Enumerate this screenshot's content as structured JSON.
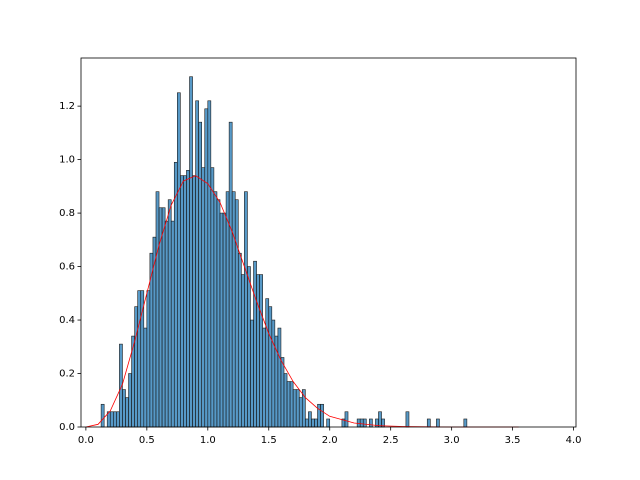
{
  "chart_data": {
    "type": "histogram",
    "bins": [
      0.1,
      0.125,
      0.15,
      0.175,
      0.2,
      0.225,
      0.25,
      0.275,
      0.3,
      0.325,
      0.35,
      0.375,
      0.4,
      0.425,
      0.45,
      0.475,
      0.5,
      0.525,
      0.55,
      0.575,
      0.6,
      0.625,
      0.65,
      0.675,
      0.7,
      0.725,
      0.75,
      0.775,
      0.8,
      0.825,
      0.85,
      0.875,
      0.9,
      0.925,
      0.95,
      0.975,
      1.0,
      1.025,
      1.05,
      1.075,
      1.1,
      1.125,
      1.15,
      1.175,
      1.2,
      1.225,
      1.25,
      1.275,
      1.3,
      1.325,
      1.35,
      1.375,
      1.4,
      1.425,
      1.45,
      1.475,
      1.5,
      1.525,
      1.55,
      1.575,
      1.6,
      1.625,
      1.65,
      1.675,
      1.7,
      1.725,
      1.75,
      1.775,
      1.8,
      1.825,
      1.85,
      1.875,
      1.9,
      1.925,
      1.95,
      1.975,
      2.0,
      2.025,
      2.05,
      2.075,
      2.1,
      2.125,
      2.15,
      2.175,
      2.2,
      2.225,
      2.25,
      2.275,
      2.3,
      2.325,
      2.35,
      2.375,
      2.4,
      2.425,
      2.45,
      2.475,
      2.5,
      2.525,
      2.55,
      2.575,
      2.6,
      2.625,
      2.65,
      2.675,
      2.7,
      2.725,
      2.75,
      2.775,
      2.8,
      2.825,
      2.85,
      2.875,
      2.9,
      2.925,
      2.95,
      2.975,
      3.0,
      3.025,
      3.05,
      3.075,
      3.1,
      3.125
    ],
    "values": [
      0,
      0.085,
      0,
      0.057,
      0.057,
      0.057,
      0.057,
      0.31,
      0.14,
      0.11,
      0.2,
      0.34,
      0.45,
      0.51,
      0.51,
      0.37,
      0.51,
      0.65,
      0.71,
      0.88,
      0.82,
      0.82,
      0.77,
      0.85,
      0.77,
      0.99,
      1.25,
      0.94,
      0.94,
      0.96,
      1.31,
      0.94,
      1.22,
      1.14,
      0.97,
      1.19,
      1.22,
      0.97,
      0.88,
      0.85,
      0.8,
      0.8,
      0.88,
      1.14,
      0.88,
      0.85,
      0.65,
      0.57,
      0.88,
      0.6,
      0.4,
      0.62,
      0.57,
      0.57,
      0.37,
      0.48,
      0.45,
      0.4,
      0.34,
      0.37,
      0.26,
      0.2,
      0.17,
      0.17,
      0.14,
      0.14,
      0.11,
      0.14,
      0.03,
      0.057,
      0.03,
      0.03,
      0.085,
      0.085,
      0,
      0.03,
      0,
      0,
      0,
      0,
      0.03,
      0.057,
      0,
      0,
      0,
      0.03,
      0.03,
      0.03,
      0,
      0.03,
      0,
      0.03,
      0.057,
      0.03,
      0,
      0,
      0,
      0,
      0,
      0,
      0,
      0.057,
      0,
      0,
      0,
      0,
      0,
      0,
      0.03,
      0,
      0,
      0.03,
      0,
      0,
      0,
      0,
      0,
      0,
      0,
      0,
      0.03
    ],
    "color": "#1f77b4",
    "curve": {
      "color": "#ff0000",
      "x": [
        0.0,
        0.1,
        0.2,
        0.3,
        0.4,
        0.5,
        0.6,
        0.7,
        0.8,
        0.9,
        1.0,
        1.1,
        1.2,
        1.3,
        1.4,
        1.5,
        1.6,
        1.7,
        1.8,
        1.9,
        2.0,
        2.2,
        2.4,
        2.6,
        3.0,
        3.55
      ],
      "y": [
        0,
        0.01,
        0.06,
        0.16,
        0.32,
        0.5,
        0.68,
        0.83,
        0.92,
        0.94,
        0.91,
        0.84,
        0.73,
        0.6,
        0.47,
        0.35,
        0.25,
        0.17,
        0.11,
        0.07,
        0.04,
        0.015,
        0.005,
        0.002,
        0,
        0
      ]
    },
    "xlim": [
      -0.04,
      4.02
    ],
    "ylim": [
      0,
      1.38
    ],
    "xticks": [
      {
        "value": 0,
        "label": "0.0"
      },
      {
        "value": 0.5,
        "label": "0.5"
      },
      {
        "value": 1,
        "label": "1.0"
      },
      {
        "value": 1.5,
        "label": "1.5"
      },
      {
        "value": 2,
        "label": "2.0"
      },
      {
        "value": 2.5,
        "label": "2.5"
      },
      {
        "value": 3,
        "label": "3.0"
      },
      {
        "value": 3.5,
        "label": "3.5"
      },
      {
        "value": 4,
        "label": "4.0"
      }
    ],
    "yticks": [
      {
        "value": 0,
        "label": "0.0"
      },
      {
        "value": 0.2,
        "label": "0.2"
      },
      {
        "value": 0.4,
        "label": "0.4"
      },
      {
        "value": 0.6,
        "label": "0.6"
      },
      {
        "value": 0.8,
        "label": "0.8"
      },
      {
        "value": 1,
        "label": "1.0"
      },
      {
        "value": 1.2,
        "label": "1.2"
      }
    ]
  }
}
